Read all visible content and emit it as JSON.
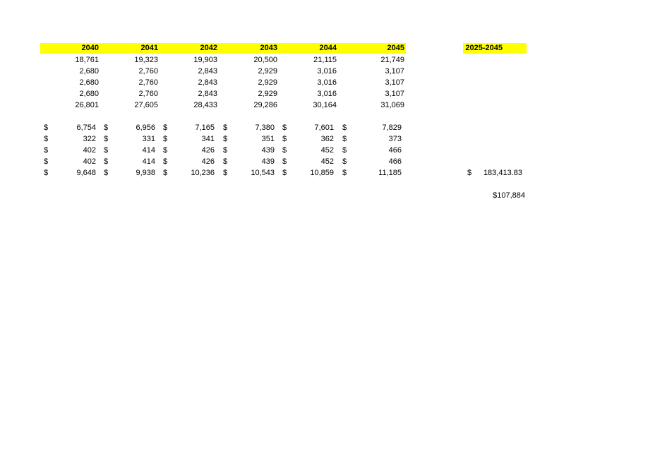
{
  "headers": [
    "2040",
    "2041",
    "2042",
    "2043",
    "2044",
    "2045"
  ],
  "total_header": "2025-2045",
  "block1_rows": [
    [
      "18,761",
      "19,323",
      "19,903",
      "20,500",
      "21,115",
      "21,749"
    ],
    [
      "2,680",
      "2,760",
      "2,843",
      "2,929",
      "3,016",
      "3,107"
    ],
    [
      "2,680",
      "2,760",
      "2,843",
      "2,929",
      "3,016",
      "3,107"
    ],
    [
      "2,680",
      "2,760",
      "2,843",
      "2,929",
      "3,016",
      "3,107"
    ],
    [
      "26,801",
      "27,605",
      "28,433",
      "29,286",
      "30,164",
      "31,069"
    ]
  ],
  "currency_symbol": "$",
  "block2_rows": [
    [
      "6,754",
      "6,956",
      "7,165",
      "7,380",
      "7,601",
      "7,829"
    ],
    [
      "322",
      "331",
      "341",
      "351",
      "362",
      "373"
    ],
    [
      "402",
      "414",
      "426",
      "439",
      "452",
      "466"
    ],
    [
      "402",
      "414",
      "426",
      "439",
      "452",
      "466"
    ],
    [
      "9,648",
      "9,938",
      "10,236",
      "10,543",
      "10,859",
      "11,185"
    ]
  ],
  "total_value": "183,413.83",
  "summary_value": "$107,884"
}
